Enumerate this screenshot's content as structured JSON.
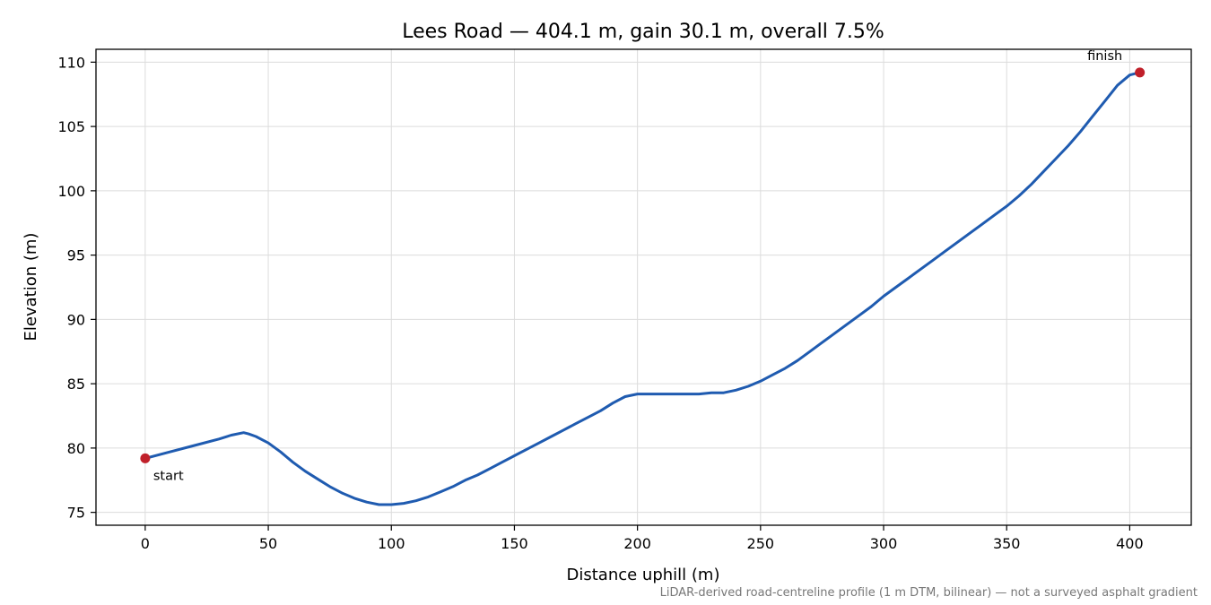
{
  "chart_data": {
    "type": "line",
    "title": "Lees Road — 404.1 m, gain 30.1 m, overall 7.5%",
    "xlabel": "Distance uphill (m)",
    "ylabel": "Elevation (m)",
    "xlim": [
      -20,
      425
    ],
    "ylim": [
      74,
      111
    ],
    "xticks": [
      0,
      50,
      100,
      150,
      200,
      250,
      300,
      350,
      400
    ],
    "yticks": [
      75,
      80,
      85,
      90,
      95,
      100,
      105,
      110
    ],
    "grid": true,
    "footnote": "LiDAR-derived road-centreline profile (1 m DTM, bilinear) — not a surveyed asphalt gradient",
    "colors": {
      "line": "#1f5bb0",
      "marker": "#c0202a"
    },
    "series": [
      {
        "x": [
          0,
          10,
          20,
          30,
          35,
          40,
          42,
          45,
          50,
          55,
          60,
          65,
          70,
          75,
          80,
          85,
          90,
          95,
          100,
          105,
          110,
          115,
          120,
          125,
          130,
          135,
          140,
          145,
          150,
          155,
          160,
          165,
          170,
          175,
          180,
          185,
          190,
          195,
          200,
          205,
          210,
          215,
          220,
          225,
          230,
          235,
          240,
          245,
          250,
          255,
          260,
          265,
          270,
          275,
          280,
          285,
          290,
          295,
          300,
          305,
          310,
          315,
          320,
          325,
          330,
          335,
          340,
          345,
          350,
          355,
          360,
          365,
          370,
          375,
          380,
          385,
          390,
          395,
          400,
          404.1
        ],
        "y": [
          79.2,
          79.7,
          80.2,
          80.7,
          81.0,
          81.2,
          81.1,
          80.9,
          80.4,
          79.7,
          78.9,
          78.2,
          77.6,
          77.0,
          76.5,
          76.1,
          75.8,
          75.6,
          75.6,
          75.7,
          75.9,
          76.2,
          76.6,
          77.0,
          77.5,
          77.9,
          78.4,
          78.9,
          79.4,
          79.9,
          80.4,
          80.9,
          81.4,
          81.9,
          82.4,
          82.9,
          83.5,
          84.0,
          84.2,
          84.2,
          84.2,
          84.2,
          84.2,
          84.2,
          84.3,
          84.3,
          84.5,
          84.8,
          85.2,
          85.7,
          86.2,
          86.8,
          87.5,
          88.2,
          88.9,
          89.6,
          90.3,
          91.0,
          91.8,
          92.5,
          93.2,
          93.9,
          94.6,
          95.3,
          96.0,
          96.7,
          97.4,
          98.1,
          98.8,
          99.6,
          100.5,
          101.5,
          102.5,
          103.5,
          104.6,
          105.8,
          107.0,
          108.2,
          109.0,
          109.2
        ]
      }
    ],
    "annotations": [
      {
        "label": "start",
        "x": 0,
        "y": 79.2
      },
      {
        "label": "finish",
        "x": 404.1,
        "y": 109.2
      }
    ]
  }
}
